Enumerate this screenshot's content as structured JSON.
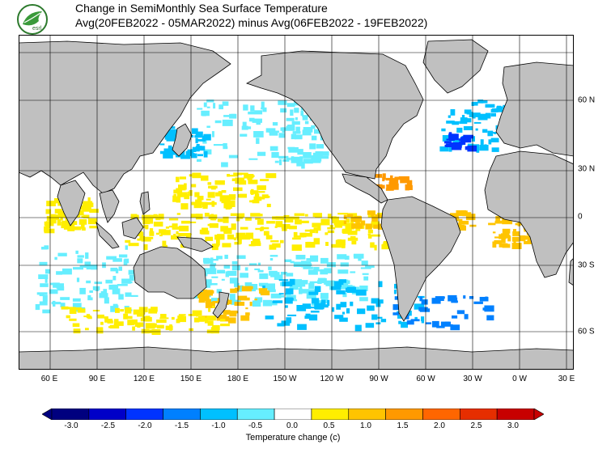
{
  "header": {
    "title_line1": "Change in SemiMonthly Sea Surface Temperature",
    "title_line2": "Avg(20FEB2022 - 05MAR2022) minus Avg(06FEB2022 - 19FEB2022)",
    "logo_text": "esrl"
  },
  "axes": {
    "x_ticks": [
      "60 E",
      "90 E",
      "120 E",
      "150 E",
      "180 E",
      "150 W",
      "120 W",
      "90 W",
      "60 W",
      "30 W",
      "0 W",
      "30 E"
    ],
    "y_ticks": [
      "60 N",
      "30 N",
      "0",
      "30 S",
      "60 S"
    ]
  },
  "colorbar": {
    "label": "Temperature change  (c)",
    "ticks": [
      "-3.0",
      "-2.5",
      "-2.0",
      "-1.5",
      "-1.0",
      "-0.5",
      "0.0",
      "0.5",
      "1.0",
      "1.5",
      "2.0",
      "2.5",
      "3.0"
    ],
    "colors": [
      "#00007f",
      "#0000c8",
      "#0033ff",
      "#0080ff",
      "#00c0ff",
      "#66eeff",
      "#ffffff",
      "#ffee00",
      "#ffc400",
      "#ff9900",
      "#ff6600",
      "#e62e00",
      "#c80000"
    ]
  },
  "map": {
    "land_color": "#c0c0c0",
    "ice_color": "#e6e6e6",
    "grid_color": "#000000"
  }
}
